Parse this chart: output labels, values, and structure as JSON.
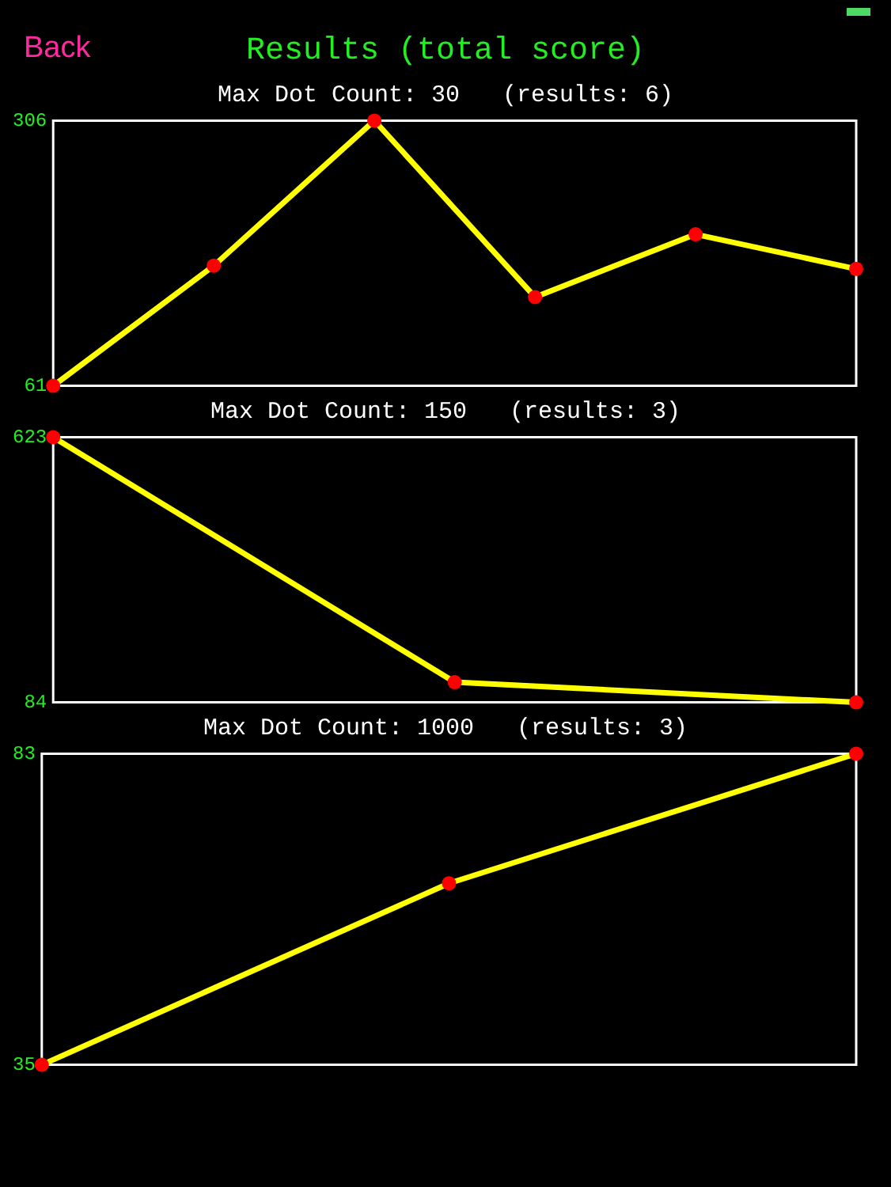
{
  "chart_data": [
    {
      "type": "line",
      "title": "Results (total score)",
      "subtitle": "Max Dot Count: 30   (results: 6)",
      "annotations": [
        "Back"
      ],
      "categories": [
        null,
        null,
        null,
        null,
        null,
        null
      ],
      "series": [
        {
          "color": "#ffff00",
          "values": [
            61,
            172,
            306,
            143,
            201,
            169
          ]
        }
      ],
      "ylim": [
        61,
        306
      ],
      "yticks": [
        61,
        306
      ],
      "grid": false,
      "legend": false,
      "marker": "circle",
      "line_style": "solid"
    },
    {
      "type": "line",
      "subtitle": "Max Dot Count: 150   (results: 3)",
      "categories": [
        null,
        null,
        null
      ],
      "series": [
        {
          "color": "#ffff00",
          "values": [
            623,
            125,
            84
          ]
        }
      ],
      "ylim": [
        84,
        623
      ],
      "yticks": [
        84,
        623
      ],
      "grid": false,
      "legend": false,
      "marker": "circle",
      "line_style": "solid"
    },
    {
      "type": "line",
      "subtitle": "Max Dot Count: 1000   (results: 3)",
      "categories": [
        null,
        null,
        null
      ],
      "series": [
        {
          "color": "#ffff00",
          "values": [
            35,
            63,
            83
          ]
        }
      ],
      "ylim": [
        35,
        83
      ],
      "yticks": [
        35,
        83
      ],
      "grid": false,
      "legend": false,
      "marker": "circle",
      "line_style": "solid"
    }
  ]
}
